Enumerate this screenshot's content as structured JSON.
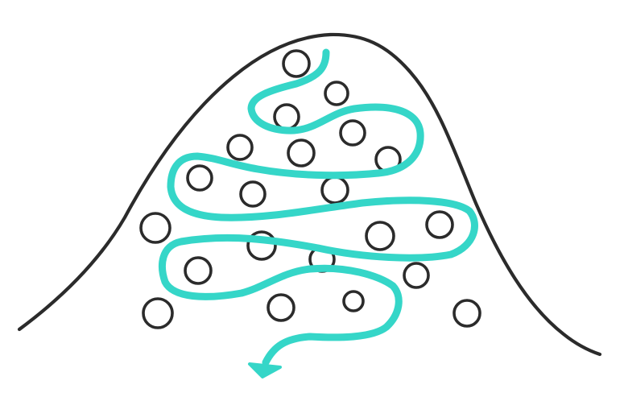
{
  "colors": {
    "background": "#ffffff",
    "outline": "#2b2b2b",
    "path": "#35d6c8"
  },
  "figure": {
    "shape": "bell-curve",
    "circle_count": 22,
    "path": "winding-arrow"
  }
}
